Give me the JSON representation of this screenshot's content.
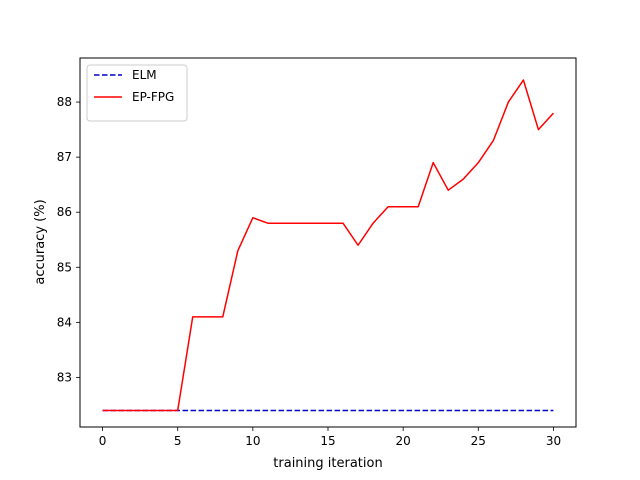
{
  "chart_data": {
    "type": "line",
    "xlabel": "training iteration",
    "ylabel": "accuracy (%)",
    "xlim": [
      -1.5,
      31.5
    ],
    "ylim": [
      82.1,
      88.8
    ],
    "xticks": [
      0,
      5,
      10,
      15,
      20,
      25,
      30
    ],
    "yticks": [
      83,
      84,
      85,
      86,
      87,
      88
    ],
    "grid": false,
    "legend_position": "top-left",
    "series": [
      {
        "name": "ELM",
        "color": "#0000cc",
        "style": "dashed",
        "x": [
          0,
          30
        ],
        "y": [
          82.4,
          82.4
        ]
      },
      {
        "name": "EP-FPG",
        "color": "#ff0000",
        "style": "solid",
        "x": [
          0,
          1,
          2,
          3,
          4,
          5,
          6,
          7,
          8,
          9,
          10,
          11,
          12,
          13,
          14,
          15,
          16,
          17,
          18,
          19,
          20,
          21,
          22,
          23,
          24,
          25,
          26,
          27,
          28,
          29,
          30
        ],
        "y": [
          82.4,
          82.4,
          82.4,
          82.4,
          82.4,
          82.4,
          84.1,
          84.1,
          84.1,
          85.3,
          85.9,
          85.8,
          85.8,
          85.8,
          85.8,
          85.8,
          85.8,
          85.4,
          85.8,
          86.1,
          86.1,
          86.1,
          86.9,
          86.4,
          86.6,
          86.9,
          87.3,
          88.0,
          88.4,
          87.5,
          87.8
        ]
      }
    ]
  }
}
